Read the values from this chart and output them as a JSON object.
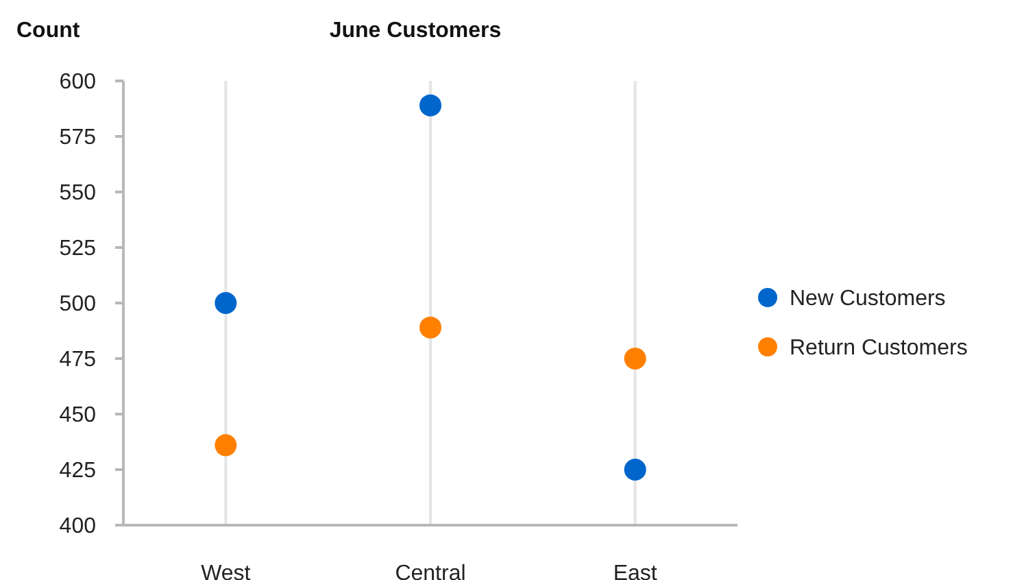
{
  "chart_data": {
    "type": "scatter",
    "title": "June Customers",
    "ylabel": "Count",
    "categories": [
      "West",
      "Central",
      "East"
    ],
    "series": [
      {
        "name": "New Customers",
        "color": "#0066cc",
        "values": [
          500,
          589,
          425
        ]
      },
      {
        "name": "Return Customers",
        "color": "#ff8000",
        "values": [
          436,
          489,
          475
        ]
      }
    ],
    "ylim": [
      400,
      600
    ],
    "yticks": [
      400,
      425,
      450,
      475,
      500,
      525,
      550,
      575,
      600
    ],
    "grid": "x",
    "legend": "right",
    "marker": "circle"
  }
}
